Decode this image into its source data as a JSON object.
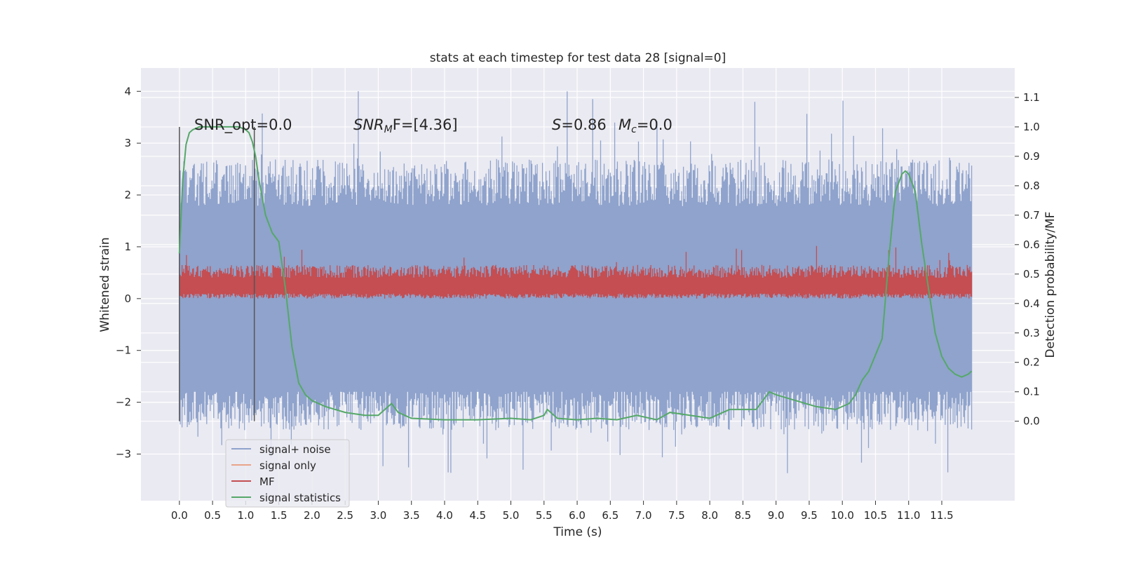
{
  "chart_data": {
    "type": "line",
    "title": "stats at each timestep for test data 28 [signal=0]",
    "xlabel": "Time (s)",
    "ylabel": "Whitened strain",
    "y2label": "Detection probability/MF",
    "xlim": [
      -0.58,
      12.6
    ],
    "ylim": [
      -3.9,
      4.45
    ],
    "y2lim": [
      -0.27,
      1.2
    ],
    "xticks": [
      "0.0",
      "0.5",
      "1.0",
      "1.5",
      "2.0",
      "2.5",
      "3.0",
      "3.5",
      "4.0",
      "4.5",
      "5.0",
      "5.5",
      "6.0",
      "6.5",
      "7.0",
      "7.5",
      "8.0",
      "8.5",
      "9.0",
      "9.5",
      "10.0",
      "10.5",
      "11.0",
      "11.5"
    ],
    "yticks": [
      "4",
      "3",
      "2",
      "1",
      "0",
      "−1",
      "−2",
      "−3"
    ],
    "y2ticks": [
      "1.1",
      "1.0",
      "0.9",
      "0.8",
      "0.7",
      "0.6",
      "0.5",
      "0.4",
      "0.3",
      "0.2",
      "0.1",
      "0.0"
    ],
    "grid": true,
    "legend_position": "lower-left",
    "annotations": {
      "snr_opt": "SNR_opt=0.0",
      "snr_mf_prefix": "SNR",
      "snr_mf_sub": "M",
      "snr_mf_suffix": "F=[4.36]",
      "s_label": "S",
      "s_value": "=0.86",
      "mc_label": "M",
      "mc_sub": "c",
      "mc_value": "=0.0"
    },
    "vertical_markers": [
      0.0,
      1.13
    ],
    "series": [
      {
        "name": "signal+ noise",
        "color": "#8fa3cc",
        "kind": "noise",
        "x_range": [
          0.0,
          11.95
        ],
        "typical_range": [
          -2.3,
          2.1
        ],
        "extremes": [
          -3.4,
          4.1
        ]
      },
      {
        "name": "signal only",
        "color": "#e8a488",
        "kind": "flat",
        "values": []
      },
      {
        "name": "MF",
        "color": "#c44e52",
        "kind": "band",
        "x_range": [
          0.0,
          11.95
        ],
        "typical_range": [
          0.0,
          0.65
        ],
        "extremes": [
          0.0,
          1.02
        ]
      },
      {
        "name": "signal statistics",
        "color": "#55a868",
        "kind": "line",
        "axis": "right",
        "x": [
          0.0,
          0.05,
          0.1,
          0.15,
          0.2,
          0.3,
          0.5,
          0.7,
          0.9,
          1.0,
          1.05,
          1.1,
          1.15,
          1.2,
          1.3,
          1.4,
          1.5,
          1.6,
          1.7,
          1.8,
          1.9,
          2.0,
          2.2,
          2.5,
          2.8,
          3.0,
          3.1,
          3.2,
          3.3,
          3.5,
          4.0,
          4.5,
          5.0,
          5.3,
          5.5,
          5.55,
          5.7,
          6.0,
          6.3,
          6.6,
          6.9,
          7.2,
          7.4,
          7.7,
          8.0,
          8.3,
          8.7,
          8.9,
          9.0,
          9.3,
          9.6,
          9.9,
          10.1,
          10.2,
          10.3,
          10.4,
          10.6,
          10.7,
          10.8,
          10.9,
          10.95,
          11.0,
          11.1,
          11.2,
          11.3,
          11.4,
          11.5,
          11.6,
          11.7,
          11.8,
          11.9,
          11.95
        ],
        "values": [
          0.57,
          0.82,
          0.94,
          0.98,
          0.99,
          1.0,
          1.0,
          1.0,
          1.0,
          0.99,
          0.98,
          0.95,
          0.9,
          0.82,
          0.7,
          0.64,
          0.61,
          0.45,
          0.25,
          0.13,
          0.09,
          0.07,
          0.05,
          0.03,
          0.02,
          0.02,
          0.04,
          0.06,
          0.03,
          0.01,
          0.005,
          0.005,
          0.01,
          0.005,
          0.02,
          0.04,
          0.01,
          0.005,
          0.01,
          0.005,
          0.02,
          0.005,
          0.03,
          0.02,
          0.01,
          0.04,
          0.04,
          0.1,
          0.09,
          0.07,
          0.05,
          0.04,
          0.06,
          0.09,
          0.14,
          0.17,
          0.28,
          0.55,
          0.78,
          0.84,
          0.85,
          0.84,
          0.78,
          0.6,
          0.45,
          0.3,
          0.22,
          0.18,
          0.16,
          0.15,
          0.16,
          0.17
        ]
      }
    ]
  }
}
